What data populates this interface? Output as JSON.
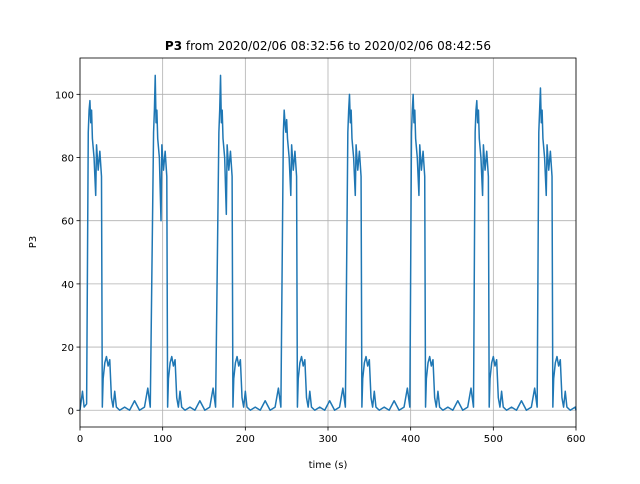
{
  "chart_data": {
    "type": "line",
    "title_parts": [
      "P3",
      "from 2020/02/06 08:32:56 to 2020/02/06 08:42:56"
    ],
    "x_label": "time (s)",
    "y_label": "P3",
    "xlim": [
      0,
      600
    ],
    "xticks": [
      0,
      100,
      200,
      300,
      400,
      500,
      600
    ],
    "ylim": [
      -5.3,
      111.5
    ],
    "yticks": [
      0,
      20,
      40,
      60,
      80,
      100
    ],
    "grid": true,
    "series": [
      {
        "color": "#1f77b4",
        "x": [
          0,
          3,
          5,
          8,
          10,
          11,
          12,
          13,
          14,
          15,
          17,
          19,
          20,
          22,
          24,
          26,
          27,
          28,
          30,
          32,
          34,
          36,
          38,
          40,
          42,
          44,
          48,
          54,
          60,
          66,
          72,
          78,
          82,
          85,
          89,
          90,
          91,
          92,
          93,
          94,
          96,
          98,
          99,
          101,
          103,
          105,
          106,
          107,
          109,
          111,
          113,
          115,
          117,
          119,
          121,
          123,
          127,
          133,
          139,
          145,
          151,
          157,
          161,
          164,
          168,
          169,
          170,
          171,
          172,
          173,
          175,
          177,
          178,
          180,
          182,
          184,
          185,
          186,
          188,
          190,
          192,
          194,
          196,
          198,
          200,
          202,
          206,
          212,
          218,
          224,
          230,
          236,
          240,
          243,
          246,
          247,
          248,
          249,
          250,
          251,
          253,
          255,
          256,
          258,
          260,
          262,
          263,
          264,
          266,
          268,
          270,
          272,
          274,
          276,
          278,
          280,
          284,
          290,
          296,
          302,
          308,
          314,
          318,
          321,
          324,
          325,
          326,
          327,
          328,
          329,
          331,
          333,
          334,
          336,
          338,
          340,
          341,
          342,
          344,
          346,
          348,
          350,
          352,
          354,
          356,
          358,
          362,
          368,
          374,
          380,
          386,
          392,
          396,
          399,
          401,
          402,
          403,
          404,
          405,
          406,
          408,
          410,
          411,
          413,
          415,
          417,
          418,
          419,
          421,
          423,
          425,
          427,
          429,
          431,
          433,
          435,
          439,
          445,
          451,
          457,
          463,
          469,
          473,
          476,
          478,
          479,
          480,
          481,
          482,
          483,
          485,
          487,
          488,
          490,
          492,
          494,
          495,
          496,
          498,
          500,
          502,
          504,
          506,
          508,
          510,
          512,
          516,
          522,
          528,
          534,
          540,
          546,
          550,
          553,
          555,
          556,
          557,
          558,
          559,
          560,
          562,
          564,
          565,
          567,
          569,
          571,
          572,
          573,
          575,
          577,
          579,
          581,
          583,
          585,
          587,
          589,
          593,
          599,
          600
        ],
        "values": [
          0,
          6,
          1,
          2,
          88,
          95,
          98,
          91,
          95,
          86,
          80,
          68,
          84,
          76,
          82,
          74,
          1,
          10,
          15,
          17,
          14,
          16,
          4,
          1,
          6,
          1,
          0,
          1,
          0,
          3,
          0,
          1,
          7,
          1,
          88,
          95,
          106,
          91,
          95,
          86,
          80,
          60,
          84,
          76,
          82,
          74,
          1,
          10,
          15,
          17,
          14,
          16,
          4,
          1,
          6,
          1,
          0,
          1,
          0,
          3,
          0,
          1,
          7,
          1,
          88,
          95,
          106,
          91,
          95,
          86,
          80,
          62,
          84,
          76,
          82,
          74,
          1,
          10,
          15,
          17,
          14,
          16,
          4,
          1,
          6,
          1,
          0,
          1,
          0,
          3,
          0,
          1,
          7,
          1,
          88,
          95,
          91,
          88,
          92,
          86,
          80,
          68,
          84,
          76,
          82,
          74,
          1,
          10,
          15,
          17,
          14,
          16,
          4,
          1,
          6,
          1,
          0,
          1,
          0,
          3,
          0,
          1,
          7,
          1,
          88,
          95,
          100,
          91,
          95,
          86,
          80,
          68,
          84,
          76,
          82,
          74,
          1,
          10,
          15,
          17,
          14,
          16,
          4,
          1,
          6,
          1,
          0,
          1,
          0,
          3,
          0,
          1,
          7,
          1,
          88,
          95,
          100,
          91,
          95,
          86,
          80,
          68,
          84,
          76,
          82,
          74,
          1,
          10,
          15,
          17,
          14,
          16,
          4,
          1,
          6,
          1,
          0,
          1,
          0,
          3,
          0,
          1,
          7,
          1,
          88,
          95,
          98,
          91,
          95,
          86,
          80,
          68,
          84,
          76,
          82,
          74,
          1,
          10,
          15,
          17,
          14,
          16,
          4,
          1,
          6,
          1,
          0,
          1,
          0,
          3,
          0,
          1,
          7,
          1,
          88,
          95,
          102,
          91,
          95,
          86,
          80,
          68,
          84,
          76,
          82,
          74,
          1,
          10,
          15,
          17,
          14,
          16,
          4,
          1,
          6,
          1,
          0,
          1,
          0
        ]
      }
    ]
  }
}
